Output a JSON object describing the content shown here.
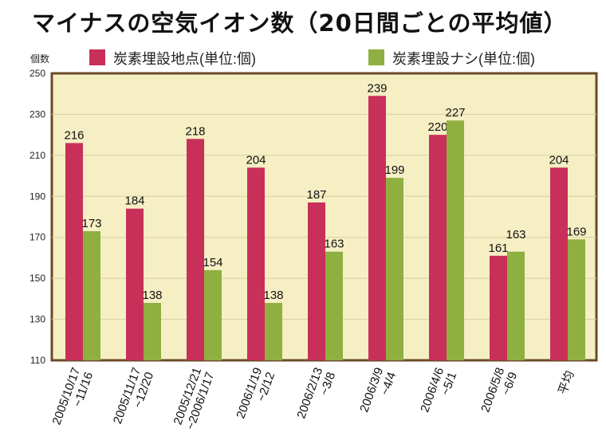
{
  "chart_data": {
    "type": "bar",
    "title": "マイナスの空気イオン数（20日間ごとの平均値）",
    "ylabel": "個数",
    "ylim": [
      110,
      250
    ],
    "yticks": [
      110,
      130,
      150,
      170,
      190,
      210,
      230,
      250
    ],
    "grid": true,
    "legend_position": "top",
    "categories": [
      [
        "2005/10/17",
        "~11/16"
      ],
      [
        "2005/11/17",
        "~12/20"
      ],
      [
        "2005/12/21",
        "~2006/1/17"
      ],
      [
        "2006/1/19",
        "~2/12"
      ],
      [
        "2006/2/13",
        "~3/8"
      ],
      [
        "2006/3/9",
        "~4/4"
      ],
      [
        "2006/4/6",
        "~5/1"
      ],
      [
        "2006/5/8",
        "~6/9"
      ],
      [
        "平均"
      ]
    ],
    "series": [
      {
        "name": "炭素埋設地点(単位:個)",
        "color": "#c8305a",
        "values": [
          216,
          184,
          218,
          204,
          187,
          239,
          220,
          161,
          204
        ]
      },
      {
        "name": "炭素埋設ナシ(単位:個)",
        "color": "#8fb040",
        "values": [
          173,
          138,
          154,
          138,
          163,
          199,
          227,
          163,
          169
        ]
      }
    ],
    "background": "#f6efc4"
  }
}
